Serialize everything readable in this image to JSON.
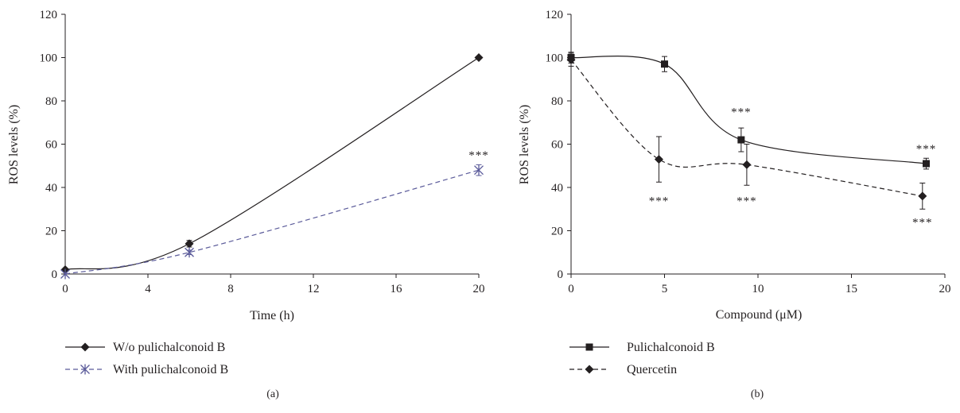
{
  "chart_data": [
    {
      "type": "line",
      "panel_label": "(a)",
      "xlabel": "Time (h)",
      "ylabel": "ROS levels  (%)",
      "xlim": [
        0,
        20
      ],
      "ylim": [
        0,
        120
      ],
      "xticks": [
        "0",
        "4",
        "8",
        "12",
        "16",
        "20"
      ],
      "yticks": [
        "0",
        "20",
        "40",
        "60",
        "80",
        "100",
        "120"
      ],
      "grid": false,
      "legend_position": "bottom-left",
      "series": [
        {
          "name": "W/o pulichalconoid B",
          "marker": "diamond",
          "line_style": "solid",
          "color": "#231f20",
          "x": [
            0,
            6,
            20
          ],
          "values": [
            2,
            14,
            100
          ],
          "error": [
            0,
            1.5,
            0
          ]
        },
        {
          "name": "With pulichalconoid B",
          "marker": "asterisk",
          "line_style": "dashed",
          "color": "#5b5b9a",
          "x": [
            0,
            6,
            20
          ],
          "values": [
            0,
            10,
            48
          ],
          "error": [
            0,
            1,
            2.5
          ]
        }
      ],
      "annotations": [
        {
          "text": "***",
          "x": 20,
          "y": 55
        }
      ]
    },
    {
      "type": "line",
      "panel_label": "(b)",
      "xlabel": "Compound (μM)",
      "ylabel": "ROS levels  (%)",
      "xlim": [
        0,
        20
      ],
      "ylim": [
        0,
        120
      ],
      "xticks": [
        "0",
        "5",
        "10",
        "15",
        "20"
      ],
      "yticks": [
        "0",
        "20",
        "40",
        "60",
        "80",
        "100",
        "120"
      ],
      "grid": false,
      "legend_position": "bottom-left",
      "series": [
        {
          "name": "Pulichalconoid B",
          "marker": "square",
          "line_style": "solid",
          "color": "#231f20",
          "x": [
            0,
            5,
            9.1,
            19
          ],
          "values": [
            100,
            97,
            62,
            51
          ],
          "error": [
            2.5,
            3.5,
            5.5,
            2.5
          ]
        },
        {
          "name": "Quercetin",
          "marker": "diamond",
          "line_style": "dashed",
          "color": "#231f20",
          "x": [
            0,
            4.7,
            9.4,
            18.8
          ],
          "values": [
            99,
            53,
            50.5,
            36
          ],
          "error": [
            3,
            10.5,
            9.5,
            6
          ]
        }
      ],
      "annotations": [
        {
          "text": "***",
          "x": 9.1,
          "y": 75
        },
        {
          "text": "***",
          "x": 19,
          "y": 58
        },
        {
          "text": "***",
          "x": 4.7,
          "y": 34
        },
        {
          "text": "***",
          "x": 9.4,
          "y": 34
        },
        {
          "text": "***",
          "x": 18.8,
          "y": 24
        }
      ]
    }
  ]
}
